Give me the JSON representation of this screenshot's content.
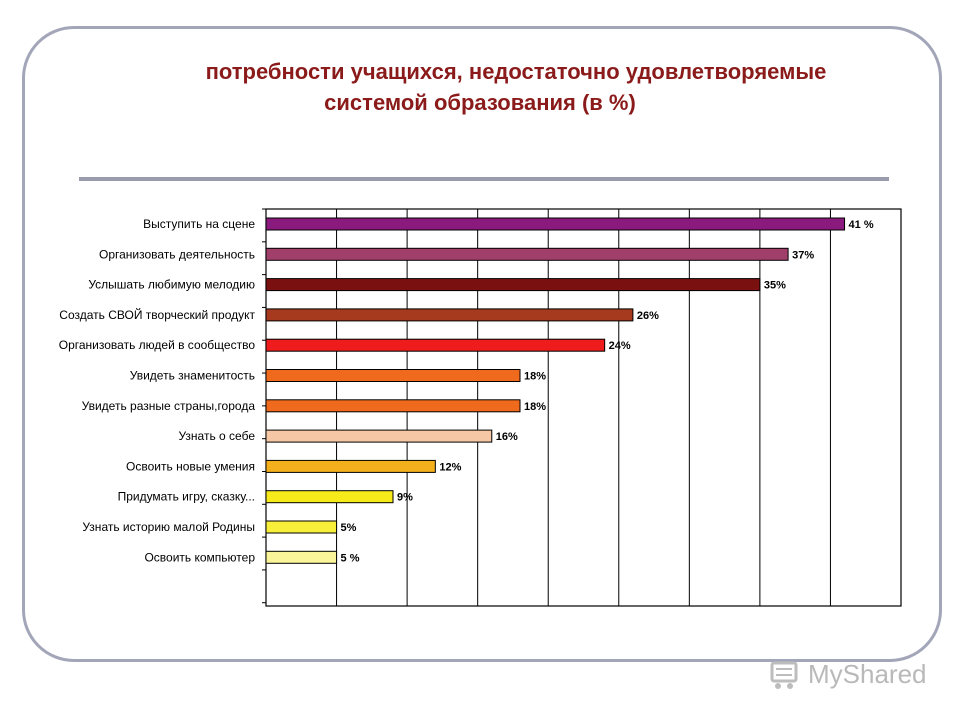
{
  "slide": {
    "title_line1": "потребности учащихся, недостаточно удовлетворяемые",
    "title_line2": "системой образования  (в %)",
    "title_color": "#8b1a1a",
    "frame_color": "#a3a6b8"
  },
  "watermark": {
    "text": "MyShared",
    "icon": "cart-logo-icon"
  },
  "chart_data": {
    "type": "bar",
    "orientation": "horizontal",
    "xlim": [
      0,
      45
    ],
    "grid": true,
    "categories": [
      "Выступить на сцене",
      "Организовать деятельность",
      "Услышать любимую мелодию",
      "Создать СВОЙ творческий продукт",
      "Организовать людей в сообщество",
      "Увидеть знаменитость",
      "Увидеть разные страны,города",
      "Узнать о себе",
      "Освоить новые умения",
      "Придумать игру, сказку...",
      "Узнать историю малой Родины",
      "Освоить компьютер"
    ],
    "values": [
      41,
      37,
      35,
      26,
      24,
      18,
      18,
      16,
      12,
      9,
      5,
      5
    ],
    "value_labels": [
      "41 %",
      "37%",
      "35%",
      "26%",
      "24%",
      "18%",
      "18%",
      "16%",
      "12%",
      "9%",
      "5%",
      "5 %"
    ],
    "colors": [
      "#8b1a7e",
      "#a0406a",
      "#7b1010",
      "#a63a1e",
      "#ee1c1c",
      "#f06a1e",
      "#f06a1e",
      "#f6c7a4",
      "#f4b01c",
      "#f7ea1a",
      "#f7ef3a",
      "#fbf59a"
    ]
  }
}
